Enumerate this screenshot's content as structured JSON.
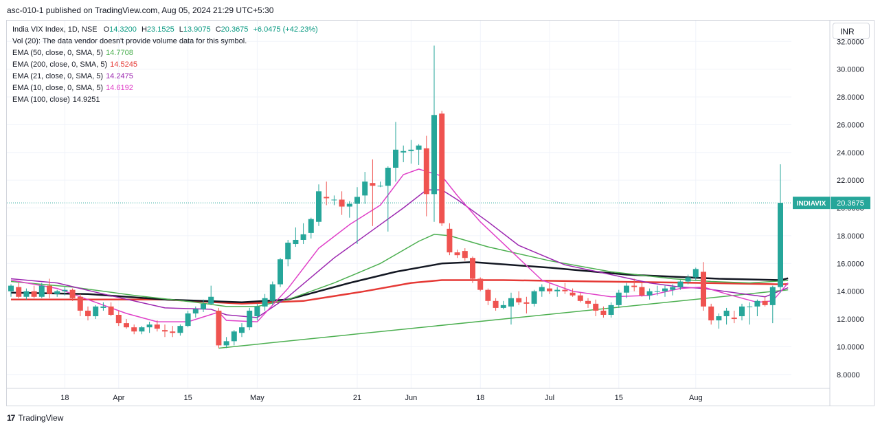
{
  "header": {
    "title": "asc-010-1 published on TradingView.com, Aug 05, 2024 21:29 UTC+5:30"
  },
  "legend": {
    "symbol": "India VIX Index, 1D, NSE",
    "ohlc": {
      "o_label": "O",
      "o": "14.3200",
      "h_label": "H",
      "h": "23.1525",
      "l_label": "L",
      "l": "13.9075",
      "c_label": "C",
      "c": "20.3675",
      "change": "+6.0475 (+42.23%)"
    },
    "vol": "Vol (20): The data vendor doesn't provide volume data for this symbol.",
    "indicators": [
      {
        "label": "EMA (50, close, 0, SMA, 5)",
        "value": "14.7708",
        "color": "#4caf50"
      },
      {
        "label": "EMA (200, close, 0, SMA, 5)",
        "value": "14.5245",
        "color": "#e53935"
      },
      {
        "label": "EMA (21, close, 0, SMA, 5)",
        "value": "14.2475",
        "color": "#9c27b0"
      },
      {
        "label": "EMA (10, close, 0, SMA, 5)",
        "value": "14.6192",
        "color": "#e040c8"
      },
      {
        "label": "EMA (100, close)",
        "value": "14.9251",
        "color": "#131722"
      }
    ]
  },
  "currency": "INR",
  "footer": {
    "brand": "TradingView",
    "logo": "17"
  },
  "colors": {
    "up": "#26a69a",
    "down": "#ef5350",
    "grid": "#f0f3fa",
    "axis_text": "#131722",
    "last_price_bg": "#26a69a"
  },
  "chart_data": {
    "type": "candlestick",
    "ylim": [
      7.0,
      33.5
    ],
    "y_ticks": [
      "8.0000",
      "10.0000",
      "12.0000",
      "14.0000",
      "16.0000",
      "18.0000",
      "20.0000",
      "22.0000",
      "24.0000",
      "26.0000",
      "28.0000",
      "30.0000",
      "32.0000"
    ],
    "x_ticks": [
      {
        "label": "18",
        "bar": 7
      },
      {
        "label": "Apr",
        "bar": 14
      },
      {
        "label": "15",
        "bar": 23
      },
      {
        "label": "May",
        "bar": 32
      },
      {
        "label": "21",
        "bar": 45
      },
      {
        "label": "Jun",
        "bar": 52
      },
      {
        "label": "18",
        "bar": 61
      },
      {
        "label": "Jul",
        "bar": 70
      },
      {
        "label": "15",
        "bar": 79
      },
      {
        "label": "Aug",
        "bar": 89
      }
    ],
    "last_price": {
      "symbol": "INDIAVIX",
      "value": "20.3675",
      "y": 20.3675
    },
    "candles": [
      [
        14.0,
        14.5,
        13.6,
        14.4
      ],
      [
        14.3,
        14.6,
        13.5,
        13.6
      ],
      [
        13.6,
        14.2,
        13.4,
        14.0
      ],
      [
        14.0,
        14.4,
        13.5,
        13.6
      ],
      [
        13.6,
        14.6,
        13.5,
        14.4
      ],
      [
        14.4,
        14.9,
        13.5,
        13.8
      ],
      [
        13.8,
        14.1,
        13.6,
        14.0
      ],
      [
        14.0,
        14.3,
        13.7,
        14.1
      ],
      [
        14.1,
        14.2,
        13.3,
        13.5
      ],
      [
        13.6,
        13.8,
        12.2,
        12.6
      ],
      [
        12.6,
        12.9,
        11.9,
        12.2
      ],
      [
        12.2,
        13.0,
        12.0,
        12.9
      ],
      [
        12.8,
        13.2,
        12.6,
        12.9
      ],
      [
        12.9,
        13.2,
        12.2,
        12.3
      ],
      [
        12.3,
        12.6,
        11.5,
        11.7
      ],
      [
        11.7,
        12.0,
        11.3,
        11.4
      ],
      [
        11.4,
        11.6,
        10.9,
        11.1
      ],
      [
        11.1,
        11.5,
        10.9,
        11.4
      ],
      [
        11.4,
        11.8,
        11.0,
        11.6
      ],
      [
        11.6,
        11.9,
        11.1,
        11.3
      ],
      [
        11.2,
        11.6,
        10.7,
        11.1
      ],
      [
        11.1,
        11.5,
        10.7,
        11.0
      ],
      [
        11.0,
        11.6,
        10.8,
        11.5
      ],
      [
        11.5,
        12.6,
        11.4,
        12.4
      ],
      [
        12.4,
        12.9,
        12.1,
        12.7
      ],
      [
        12.7,
        13.4,
        12.5,
        13.1
      ],
      [
        13.1,
        14.4,
        13.0,
        13.6
      ],
      [
        12.6,
        12.8,
        9.9,
        10.1
      ],
      [
        10.1,
        10.7,
        9.9,
        10.4
      ],
      [
        10.4,
        11.2,
        10.1,
        11.1
      ],
      [
        11.0,
        11.7,
        10.7,
        11.4
      ],
      [
        11.4,
        12.8,
        11.2,
        12.6
      ],
      [
        12.2,
        13.1,
        11.9,
        12.9
      ],
      [
        12.9,
        13.8,
        12.6,
        13.5
      ],
      [
        13.3,
        14.7,
        13.0,
        14.5
      ],
      [
        14.5,
        16.4,
        14.3,
        16.3
      ],
      [
        16.3,
        17.7,
        15.8,
        17.5
      ],
      [
        17.4,
        18.6,
        17.2,
        17.7
      ],
      [
        17.7,
        18.9,
        17.4,
        18.1
      ],
      [
        18.2,
        19.3,
        17.8,
        19.2
      ],
      [
        19.0,
        21.7,
        18.7,
        21.2
      ],
      [
        20.8,
        21.9,
        20.2,
        20.7
      ],
      [
        20.6,
        20.9,
        20.2,
        20.6
      ],
      [
        20.6,
        21.2,
        19.5,
        20.1
      ],
      [
        20.1,
        20.5,
        19.3,
        20.3
      ],
      [
        20.3,
        21.5,
        17.4,
        20.8
      ],
      [
        20.9,
        22.6,
        20.3,
        21.9
      ],
      [
        21.8,
        23.5,
        18.7,
        21.6
      ],
      [
        21.6,
        21.9,
        21.5,
        21.6
      ],
      [
        21.6,
        23.0,
        18.3,
        22.9
      ],
      [
        22.9,
        26.2,
        21.9,
        24.2
      ],
      [
        24.0,
        24.5,
        23.3,
        24.1
      ],
      [
        24.1,
        24.9,
        23.2,
        24.2
      ],
      [
        24.2,
        24.6,
        23.1,
        24.5
      ],
      [
        24.3,
        25.2,
        19.4,
        21.0
      ],
      [
        21.0,
        31.7,
        19.0,
        26.7
      ],
      [
        26.8,
        27.0,
        18.7,
        18.9
      ],
      [
        18.5,
        18.9,
        16.6,
        16.8
      ],
      [
        16.8,
        17.0,
        16.4,
        16.6
      ],
      [
        16.9,
        17.1,
        16.2,
        16.4
      ],
      [
        16.4,
        16.5,
        14.6,
        14.9
      ],
      [
        14.9,
        15.0,
        14.0,
        14.1
      ],
      [
        14.1,
        14.2,
        13.0,
        13.3
      ],
      [
        13.3,
        13.5,
        12.6,
        12.8
      ],
      [
        12.8,
        13.3,
        12.7,
        13.0
      ],
      [
        12.9,
        13.9,
        11.6,
        13.5
      ],
      [
        13.5,
        14.0,
        13.0,
        13.2
      ],
      [
        13.2,
        13.6,
        12.4,
        13.1
      ],
      [
        13.1,
        14.1,
        12.9,
        14.0
      ],
      [
        14.0,
        14.5,
        13.6,
        14.3
      ],
      [
        14.2,
        14.6,
        13.8,
        14.0
      ],
      [
        14.0,
        14.3,
        13.6,
        14.1
      ],
      [
        14.1,
        14.6,
        13.8,
        14.0
      ],
      [
        13.9,
        14.2,
        13.6,
        13.7
      ],
      [
        13.7,
        13.9,
        13.2,
        13.3
      ],
      [
        13.3,
        13.5,
        12.8,
        13.1
      ],
      [
        13.1,
        13.4,
        12.2,
        12.6
      ],
      [
        12.6,
        12.9,
        12.1,
        12.3
      ],
      [
        12.3,
        13.2,
        12.1,
        13.0
      ],
      [
        13.0,
        14.1,
        12.8,
        13.9
      ],
      [
        13.9,
        14.6,
        13.5,
        14.4
      ],
      [
        14.4,
        14.9,
        14.0,
        14.3
      ],
      [
        14.3,
        14.6,
        13.6,
        13.7
      ],
      [
        13.7,
        14.2,
        13.4,
        14.0
      ],
      [
        14.0,
        14.4,
        13.7,
        14.0
      ],
      [
        14.0,
        14.4,
        13.6,
        14.2
      ],
      [
        14.1,
        14.5,
        13.7,
        14.3
      ],
      [
        14.3,
        14.8,
        14.1,
        14.7
      ],
      [
        14.7,
        15.2,
        14.5,
        15.0
      ],
      [
        15.0,
        15.7,
        14.8,
        15.6
      ],
      [
        15.4,
        16.1,
        12.6,
        12.9
      ],
      [
        12.9,
        13.1,
        11.6,
        11.9
      ],
      [
        11.9,
        12.4,
        11.3,
        12.2
      ],
      [
        12.2,
        12.8,
        11.6,
        12.6
      ],
      [
        12.1,
        12.6,
        11.7,
        12.0
      ],
      [
        12.2,
        13.1,
        11.9,
        12.9
      ],
      [
        12.9,
        13.2,
        11.6,
        12.9
      ],
      [
        12.9,
        13.4,
        12.2,
        13.3
      ],
      [
        13.3,
        13.6,
        12.9,
        13.0
      ],
      [
        13.0,
        14.4,
        11.7,
        14.3
      ],
      [
        14.3,
        23.15,
        13.9,
        20.37
      ]
    ],
    "ema10": [
      [
        0,
        14.8
      ],
      [
        6,
        14.2
      ],
      [
        11,
        13.2
      ],
      [
        15,
        12.4
      ],
      [
        19,
        11.8
      ],
      [
        23,
        11.8
      ],
      [
        27,
        12.5
      ],
      [
        28,
        11.9
      ],
      [
        32,
        11.8
      ],
      [
        36,
        14.2
      ],
      [
        40,
        17.1
      ],
      [
        44,
        18.8
      ],
      [
        48,
        20.2
      ],
      [
        51,
        22.4
      ],
      [
        53,
        22.8
      ],
      [
        56,
        22.3
      ],
      [
        58,
        20.9
      ],
      [
        61,
        19.0
      ],
      [
        65,
        16.9
      ],
      [
        69,
        14.8
      ],
      [
        73,
        14.0
      ],
      [
        78,
        13.6
      ],
      [
        83,
        13.7
      ],
      [
        87,
        14.2
      ],
      [
        90,
        14.3
      ],
      [
        93,
        13.8
      ],
      [
        97,
        13.2
      ],
      [
        99,
        13.3
      ],
      [
        101,
        14.6
      ]
    ],
    "ema21": [
      [
        0,
        14.9
      ],
      [
        6,
        14.6
      ],
      [
        12,
        13.8
      ],
      [
        20,
        12.8
      ],
      [
        26,
        12.7
      ],
      [
        28,
        12.3
      ],
      [
        32,
        12.1
      ],
      [
        36,
        13.6
      ],
      [
        42,
        16.4
      ],
      [
        47,
        18.4
      ],
      [
        51,
        20.0
      ],
      [
        54,
        21.3
      ],
      [
        56,
        21.3
      ],
      [
        58,
        20.6
      ],
      [
        62,
        19.0
      ],
      [
        66,
        17.3
      ],
      [
        72,
        15.9
      ],
      [
        78,
        15.2
      ],
      [
        83,
        14.6
      ],
      [
        87,
        14.3
      ],
      [
        90,
        14.2
      ],
      [
        94,
        13.9
      ],
      [
        98,
        13.6
      ],
      [
        101,
        14.25
      ]
    ],
    "ema50": [
      [
        0,
        14.7
      ],
      [
        8,
        14.3
      ],
      [
        16,
        13.7
      ],
      [
        24,
        13.2
      ],
      [
        28,
        12.9
      ],
      [
        32,
        12.9
      ],
      [
        36,
        13.4
      ],
      [
        42,
        14.6
      ],
      [
        48,
        16.0
      ],
      [
        53,
        17.6
      ],
      [
        55,
        18.1
      ],
      [
        57,
        18.0
      ],
      [
        62,
        17.2
      ],
      [
        70,
        16.2
      ],
      [
        78,
        15.4
      ],
      [
        86,
        14.9
      ],
      [
        91,
        14.7
      ],
      [
        96,
        14.6
      ],
      [
        101,
        14.77
      ]
    ],
    "ema100": [
      [
        0,
        13.9
      ],
      [
        10,
        13.8
      ],
      [
        20,
        13.4
      ],
      [
        30,
        13.2
      ],
      [
        36,
        13.4
      ],
      [
        44,
        14.6
      ],
      [
        50,
        15.4
      ],
      [
        54,
        15.8
      ],
      [
        56,
        16.0
      ],
      [
        60,
        16.1
      ],
      [
        70,
        15.7
      ],
      [
        80,
        15.2
      ],
      [
        92,
        14.9
      ],
      [
        100,
        14.8
      ],
      [
        101,
        14.93
      ]
    ],
    "ema200": [
      [
        0,
        13.4
      ],
      [
        10,
        13.4
      ],
      [
        20,
        13.4
      ],
      [
        30,
        13.1
      ],
      [
        38,
        13.3
      ],
      [
        46,
        14.0
      ],
      [
        52,
        14.6
      ],
      [
        56,
        14.8
      ],
      [
        64,
        14.8
      ],
      [
        76,
        14.7
      ],
      [
        90,
        14.6
      ],
      [
        100,
        14.5
      ],
      [
        101,
        14.52
      ]
    ],
    "trendline": [
      [
        27,
        9.9
      ],
      [
        101,
        14.1
      ]
    ]
  }
}
